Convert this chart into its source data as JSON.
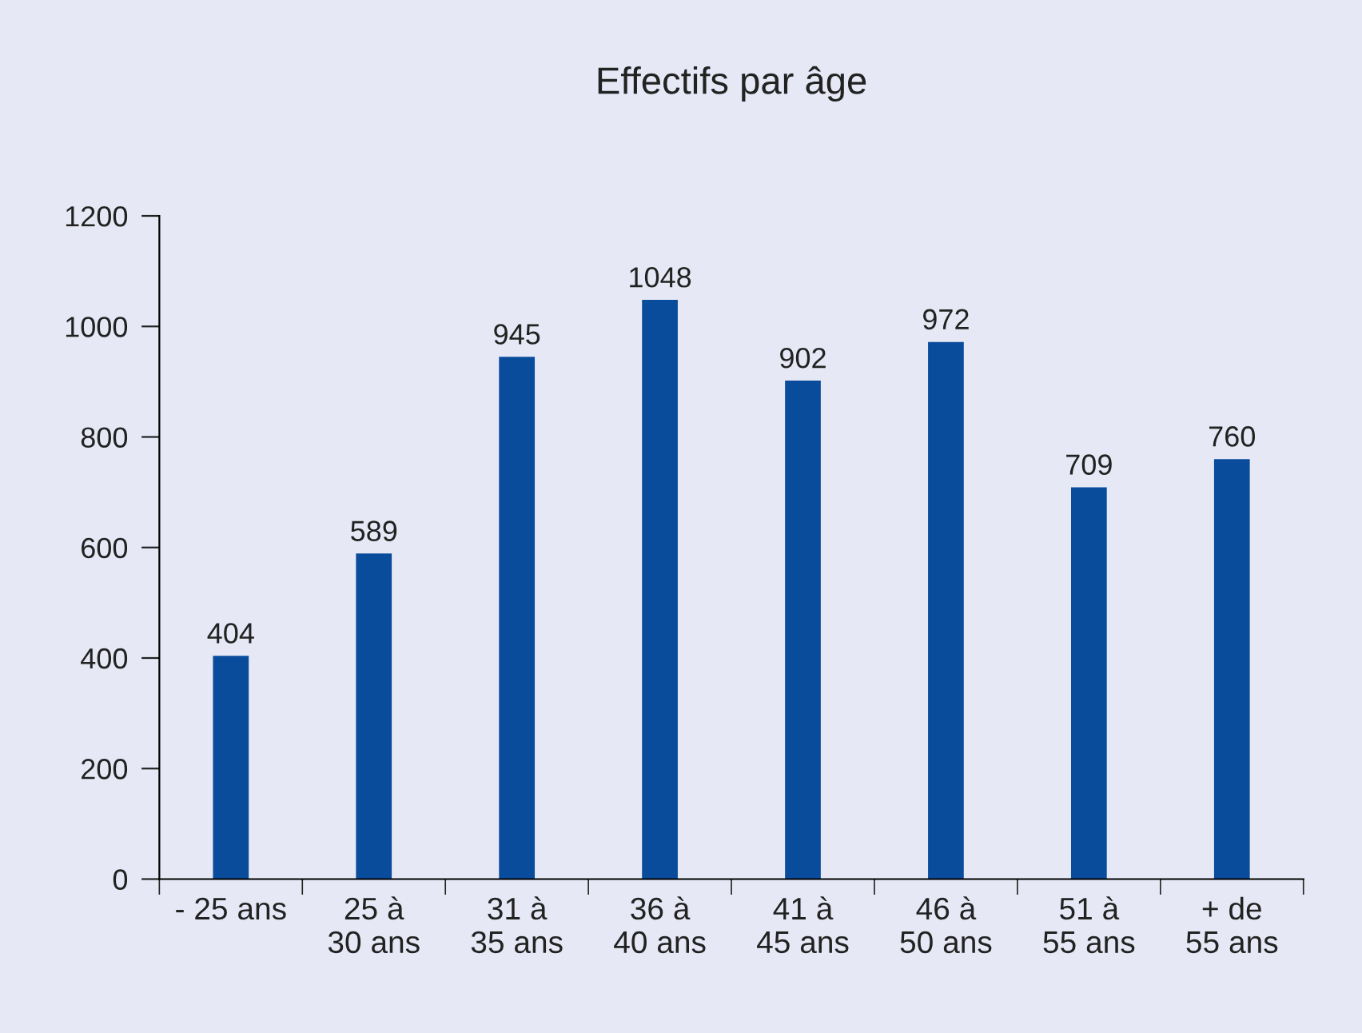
{
  "chart_data": {
    "type": "bar",
    "title": "Effectifs par âge",
    "categories": [
      "- 25 ans",
      "25 à\n30 ans",
      "31 à\n35 ans",
      "36 à\n40 ans",
      "41 à\n45 ans",
      "46 à\n50 ans",
      "51 à\n55 ans",
      "+ de\n55 ans"
    ],
    "values": [
      404,
      589,
      945,
      1048,
      902,
      972,
      709,
      760
    ],
    "color": "#0a4c9c",
    "ylim": [
      0,
      1200
    ],
    "yticks": [
      0,
      200,
      400,
      600,
      800,
      1000,
      1200
    ],
    "grid": false,
    "legend": false,
    "data_labels": true
  }
}
